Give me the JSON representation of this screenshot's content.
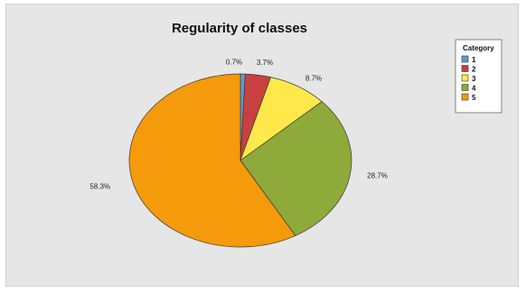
{
  "chart_data": {
    "type": "pie",
    "title": "Regularity of classes",
    "legend_title": "Category",
    "legend_position": "top-right",
    "categories": [
      "1",
      "2",
      "3",
      "4",
      "5"
    ],
    "values": [
      0.7,
      3.7,
      8.7,
      28.7,
      58.3
    ],
    "labels": [
      "0.7%",
      "3.7%",
      "8.7%",
      "28.7%",
      "58.3%"
    ],
    "colors": [
      "#5b9bd5",
      "#c94040",
      "#ffe94a",
      "#8eaa3a",
      "#f59a0a"
    ],
    "start_angle_deg": 0,
    "direction": "clockwise"
  }
}
